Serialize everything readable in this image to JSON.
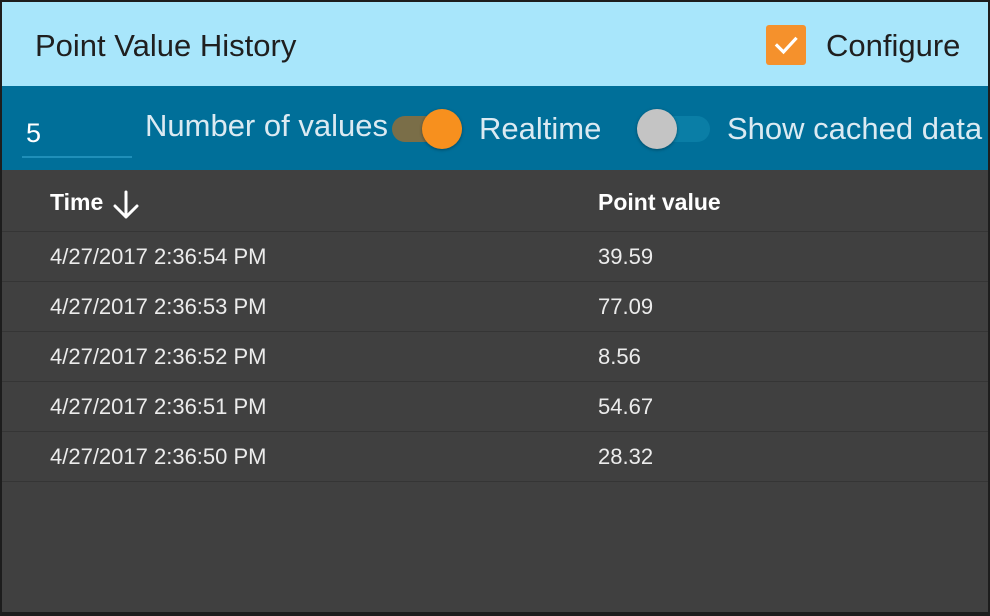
{
  "header": {
    "title": "Point Value History",
    "configure_label": "Configure",
    "configure_checked": true
  },
  "toolbar": {
    "number_of_values": "5",
    "number_of_values_label": "Number of values",
    "realtime_label": "Realtime",
    "realtime_on": true,
    "show_cached_label": "Show cached data",
    "show_cached_on": false
  },
  "table": {
    "columns": [
      "Time",
      "Point value"
    ],
    "sort": {
      "column": "Time",
      "direction": "descending",
      "icon": "arrow-down-icon"
    },
    "rows": [
      {
        "time": "4/27/2017 2:36:54 PM",
        "value": "39.59"
      },
      {
        "time": "4/27/2017 2:36:53 PM",
        "value": "77.09"
      },
      {
        "time": "4/27/2017 2:36:52 PM",
        "value": "8.56"
      },
      {
        "time": "4/27/2017 2:36:51 PM",
        "value": "54.67"
      },
      {
        "time": "4/27/2017 2:36:50 PM",
        "value": "28.32"
      }
    ]
  },
  "colors": {
    "header_bg": "#a8e6fb",
    "toolbar_bg": "#006f99",
    "body_bg": "#404040",
    "accent": "#f7901e"
  }
}
